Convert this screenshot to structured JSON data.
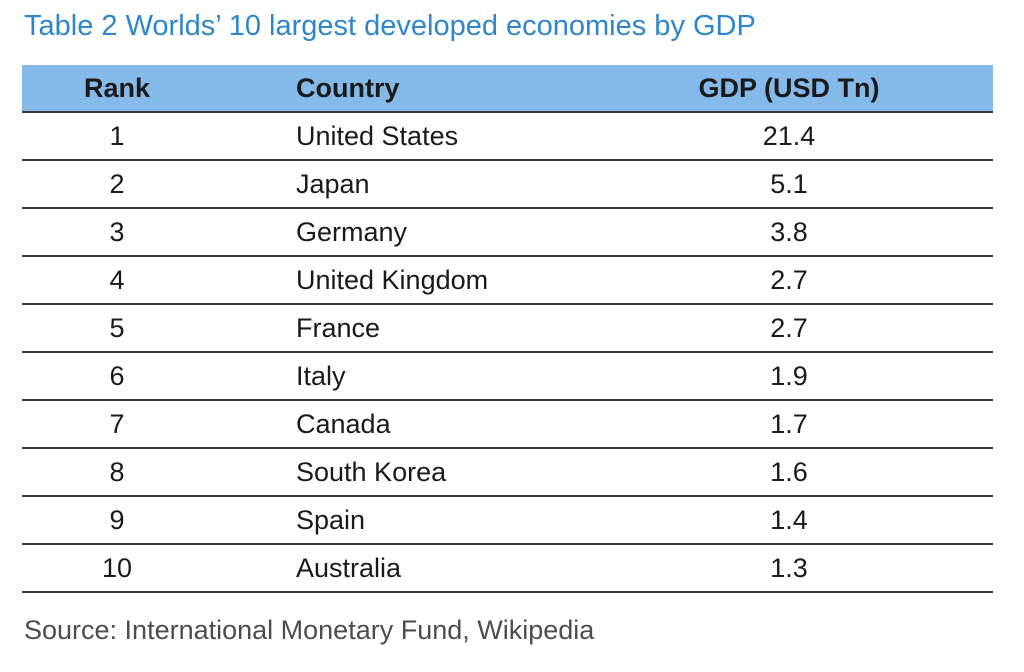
{
  "title": "Table 2 Worlds’ 10 largest developed economies by GDP",
  "table": {
    "headers": {
      "rank": "Rank",
      "country": "Country",
      "gdp": "GDP (USD Tn)"
    },
    "rows": [
      {
        "rank": "1",
        "country": "United States",
        "gdp": "21.4"
      },
      {
        "rank": "2",
        "country": "Japan",
        "gdp": "5.1"
      },
      {
        "rank": "3",
        "country": "Germany",
        "gdp": "3.8"
      },
      {
        "rank": "4",
        "country": "United Kingdom",
        "gdp": "2.7"
      },
      {
        "rank": "5",
        "country": "France",
        "gdp": "2.7"
      },
      {
        "rank": "6",
        "country": "Italy",
        "gdp": "1.9"
      },
      {
        "rank": "7",
        "country": "Canada",
        "gdp": "1.7"
      },
      {
        "rank": "8",
        "country": "South Korea",
        "gdp": "1.6"
      },
      {
        "rank": "9",
        "country": "Spain",
        "gdp": "1.4"
      },
      {
        "rank": "10",
        "country": "Australia",
        "gdp": "1.3"
      }
    ]
  },
  "source": "Source: International Monetary Fund, Wikipedia",
  "colors": {
    "title": "#2f86cc",
    "header_background": "#85b9ea",
    "rule": "#3c3c3c"
  }
}
